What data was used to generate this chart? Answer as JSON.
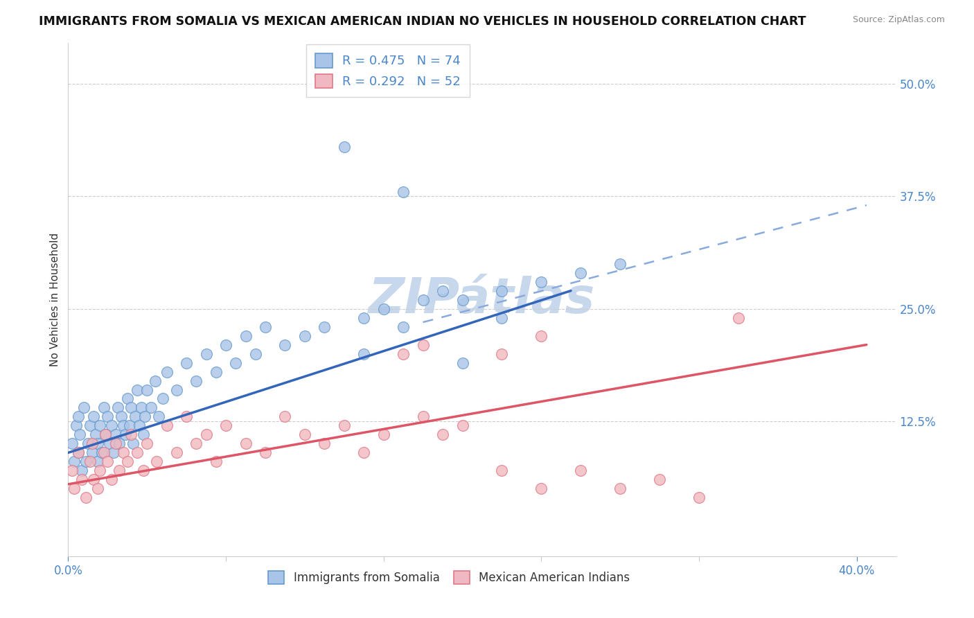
{
  "title": "IMMIGRANTS FROM SOMALIA VS MEXICAN AMERICAN INDIAN NO VEHICLES IN HOUSEHOLD CORRELATION CHART",
  "source": "Source: ZipAtlas.com",
  "ylabel": "No Vehicles in Household",
  "xlim": [
    0.0,
    0.42
  ],
  "ylim": [
    -0.025,
    0.545
  ],
  "ytick_vals": [
    0.125,
    0.25,
    0.375,
    0.5
  ],
  "ytick_labels": [
    "12.5%",
    "25.0%",
    "37.5%",
    "50.0%"
  ],
  "xtick_vals": [
    0.0,
    0.4
  ],
  "xtick_labels": [
    "0.0%",
    "40.0%"
  ],
  "xtick_minor": [
    0.08,
    0.16,
    0.24,
    0.32
  ],
  "series1": {
    "label": "Immigrants from Somalia",
    "R": 0.475,
    "N": 74,
    "color_fill": "#a8c4e8",
    "edge_color": "#6699cc"
  },
  "series2": {
    "label": "Mexican American Indians",
    "R": 0.292,
    "N": 52,
    "color_fill": "#f0b8c0",
    "edge_color": "#e07888"
  },
  "background_color": "#ffffff",
  "grid_color": "#cccccc",
  "title_color": "#111111",
  "axis_label_color": "#4a86c8",
  "ylabel_color": "#333333",
  "legend_R_color": "#4a86c8",
  "watermark_text": "ZIPátlas",
  "watermark_color": "#c8d8ec",
  "blue_line": {
    "x": [
      0.0,
      0.255
    ],
    "y": [
      0.09,
      0.27
    ]
  },
  "dashed_line": {
    "x": [
      0.18,
      0.405
    ],
    "y": [
      0.235,
      0.365
    ]
  },
  "pink_line": {
    "x": [
      0.0,
      0.405
    ],
    "y": [
      0.055,
      0.21
    ]
  },
  "somalia_points": {
    "x": [
      0.002,
      0.003,
      0.004,
      0.005,
      0.005,
      0.006,
      0.007,
      0.008,
      0.009,
      0.01,
      0.011,
      0.012,
      0.013,
      0.014,
      0.015,
      0.015,
      0.016,
      0.017,
      0.018,
      0.019,
      0.02,
      0.021,
      0.022,
      0.023,
      0.024,
      0.025,
      0.026,
      0.027,
      0.028,
      0.029,
      0.03,
      0.031,
      0.032,
      0.033,
      0.034,
      0.035,
      0.036,
      0.037,
      0.038,
      0.039,
      0.04,
      0.042,
      0.044,
      0.046,
      0.048,
      0.05,
      0.055,
      0.06,
      0.065,
      0.07,
      0.075,
      0.08,
      0.085,
      0.09,
      0.095,
      0.1,
      0.11,
      0.12,
      0.13,
      0.14,
      0.15,
      0.16,
      0.17,
      0.18,
      0.19,
      0.2,
      0.22,
      0.24,
      0.26,
      0.28,
      0.15,
      0.17,
      0.2,
      0.22
    ],
    "y": [
      0.1,
      0.08,
      0.12,
      0.09,
      0.13,
      0.11,
      0.07,
      0.14,
      0.08,
      0.1,
      0.12,
      0.09,
      0.13,
      0.11,
      0.1,
      0.08,
      0.12,
      0.09,
      0.14,
      0.11,
      0.13,
      0.1,
      0.12,
      0.09,
      0.11,
      0.14,
      0.1,
      0.13,
      0.12,
      0.11,
      0.15,
      0.12,
      0.14,
      0.1,
      0.13,
      0.16,
      0.12,
      0.14,
      0.11,
      0.13,
      0.16,
      0.14,
      0.17,
      0.13,
      0.15,
      0.18,
      0.16,
      0.19,
      0.17,
      0.2,
      0.18,
      0.21,
      0.19,
      0.22,
      0.2,
      0.23,
      0.21,
      0.22,
      0.23,
      0.43,
      0.24,
      0.25,
      0.23,
      0.26,
      0.27,
      0.26,
      0.27,
      0.28,
      0.29,
      0.3,
      0.2,
      0.38,
      0.19,
      0.24
    ]
  },
  "mexican_points": {
    "x": [
      0.002,
      0.003,
      0.005,
      0.007,
      0.009,
      0.011,
      0.012,
      0.013,
      0.015,
      0.016,
      0.018,
      0.019,
      0.02,
      0.022,
      0.024,
      0.026,
      0.028,
      0.03,
      0.032,
      0.035,
      0.038,
      0.04,
      0.045,
      0.05,
      0.055,
      0.06,
      0.065,
      0.07,
      0.075,
      0.08,
      0.09,
      0.1,
      0.11,
      0.12,
      0.13,
      0.14,
      0.15,
      0.16,
      0.17,
      0.18,
      0.19,
      0.2,
      0.22,
      0.24,
      0.26,
      0.28,
      0.3,
      0.32,
      0.24,
      0.18,
      0.22,
      0.34
    ],
    "y": [
      0.07,
      0.05,
      0.09,
      0.06,
      0.04,
      0.08,
      0.1,
      0.06,
      0.05,
      0.07,
      0.09,
      0.11,
      0.08,
      0.06,
      0.1,
      0.07,
      0.09,
      0.08,
      0.11,
      0.09,
      0.07,
      0.1,
      0.08,
      0.12,
      0.09,
      0.13,
      0.1,
      0.11,
      0.08,
      0.12,
      0.1,
      0.09,
      0.13,
      0.11,
      0.1,
      0.12,
      0.09,
      0.11,
      0.2,
      0.13,
      0.11,
      0.12,
      0.07,
      0.05,
      0.07,
      0.05,
      0.06,
      0.04,
      0.22,
      0.21,
      0.2,
      0.24
    ]
  }
}
